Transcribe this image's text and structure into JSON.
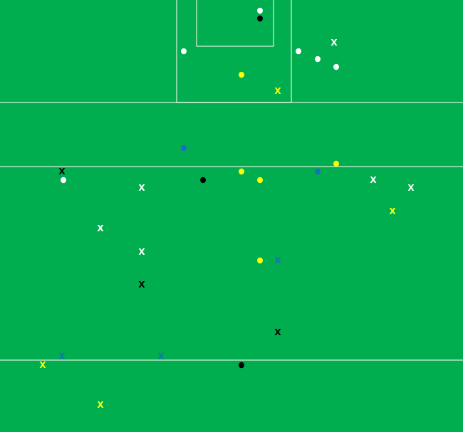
{
  "chart_data": {
    "type": "scatter",
    "title": "",
    "xlabel": "",
    "ylabel": "",
    "xlim": [
      0,
      65
    ],
    "ylim": [
      0,
      60.7
    ],
    "y_inverted": true,
    "grid": false,
    "legend": "none",
    "colors": {
      "pitch": "#00ad4f",
      "lines": "#d8efd8",
      "white": "#ffffff",
      "black": "#000000",
      "yellow": "#ffff00",
      "blue": "#1a6fbf"
    },
    "pitch_lines": {
      "horizontal_y": [
        14.4,
        23.4,
        50.6
      ],
      "large_box": {
        "x": [
          24.8,
          40.9
        ],
        "y": [
          0,
          14.4
        ]
      },
      "small_box": {
        "x": [
          27.6,
          38.4
        ],
        "y": [
          0,
          6.5
        ]
      }
    },
    "points": [
      {
        "x": 36.5,
        "y": 1.5,
        "color": "white",
        "marker": "dot"
      },
      {
        "x": 36.5,
        "y": 2.6,
        "color": "black",
        "marker": "dot"
      },
      {
        "x": 25.8,
        "y": 7.2,
        "color": "white",
        "marker": "dot"
      },
      {
        "x": 41.9,
        "y": 7.2,
        "color": "white",
        "marker": "dot"
      },
      {
        "x": 46.9,
        "y": 6.0,
        "color": "white",
        "marker": "x"
      },
      {
        "x": 44.6,
        "y": 8.3,
        "color": "white",
        "marker": "dot"
      },
      {
        "x": 47.2,
        "y": 9.4,
        "color": "white",
        "marker": "dot"
      },
      {
        "x": 33.9,
        "y": 10.5,
        "color": "yellow",
        "marker": "dot"
      },
      {
        "x": 39.0,
        "y": 12.8,
        "color": "yellow",
        "marker": "x"
      },
      {
        "x": 25.8,
        "y": 20.8,
        "color": "blue",
        "marker": "dot"
      },
      {
        "x": 8.7,
        "y": 24.1,
        "color": "black",
        "marker": "x"
      },
      {
        "x": 8.9,
        "y": 25.3,
        "color": "white",
        "marker": "dot"
      },
      {
        "x": 19.9,
        "y": 26.4,
        "color": "white",
        "marker": "x"
      },
      {
        "x": 28.5,
        "y": 25.3,
        "color": "black",
        "marker": "dot"
      },
      {
        "x": 33.9,
        "y": 24.1,
        "color": "yellow",
        "marker": "dot"
      },
      {
        "x": 36.5,
        "y": 25.3,
        "color": "yellow",
        "marker": "dot"
      },
      {
        "x": 44.6,
        "y": 24.1,
        "color": "blue",
        "marker": "dot"
      },
      {
        "x": 47.2,
        "y": 23.0,
        "color": "yellow",
        "marker": "dot"
      },
      {
        "x": 52.4,
        "y": 25.3,
        "color": "white",
        "marker": "x"
      },
      {
        "x": 57.7,
        "y": 26.4,
        "color": "white",
        "marker": "x"
      },
      {
        "x": 55.1,
        "y": 29.7,
        "color": "yellow",
        "marker": "x"
      },
      {
        "x": 14.1,
        "y": 32.1,
        "color": "white",
        "marker": "x"
      },
      {
        "x": 19.9,
        "y": 35.4,
        "color": "white",
        "marker": "x"
      },
      {
        "x": 36.5,
        "y": 36.6,
        "color": "yellow",
        "marker": "dot"
      },
      {
        "x": 39.0,
        "y": 36.6,
        "color": "blue",
        "marker": "x"
      },
      {
        "x": 19.9,
        "y": 40.0,
        "color": "black",
        "marker": "x"
      },
      {
        "x": 39.0,
        "y": 46.7,
        "color": "black",
        "marker": "x"
      },
      {
        "x": 8.7,
        "y": 50.1,
        "color": "blue",
        "marker": "x"
      },
      {
        "x": 22.6,
        "y": 50.1,
        "color": "blue",
        "marker": "x"
      },
      {
        "x": 6.0,
        "y": 51.3,
        "color": "yellow",
        "marker": "x"
      },
      {
        "x": 33.9,
        "y": 51.3,
        "color": "black",
        "marker": "dot"
      },
      {
        "x": 14.1,
        "y": 56.9,
        "color": "yellow",
        "marker": "x"
      }
    ]
  }
}
